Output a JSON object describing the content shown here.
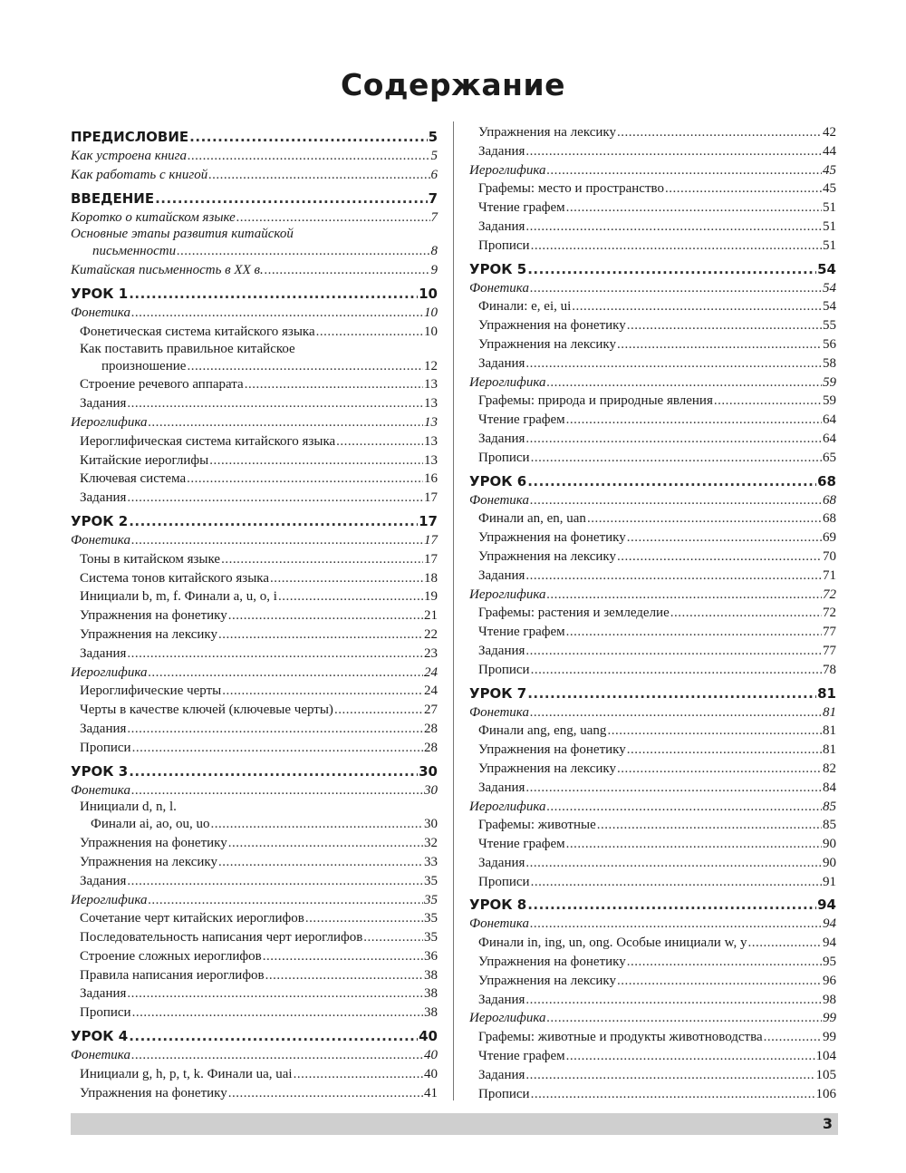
{
  "title": "Содержание",
  "page_number": "3",
  "left": [
    {
      "k": "h",
      "t": "ПРЕДИСЛОВИЕ",
      "p": "5"
    },
    {
      "k": "s",
      "t": "Как устроена книга",
      "p": "5"
    },
    {
      "k": "s",
      "t": "Как работать с книгой",
      "p": "6"
    },
    {
      "k": "h",
      "t": "ВВЕДЕНИЕ",
      "p": "7"
    },
    {
      "k": "s",
      "t": "Коротко о китайском языке",
      "p": "7"
    },
    {
      "k": "s",
      "pre": "Основные этапы развития китайской",
      "t": "письменности",
      "p": "8"
    },
    {
      "k": "s",
      "t": "Китайская письменность в XX в.",
      "p": "9"
    },
    {
      "k": "h",
      "t": "УРОК 1",
      "p": "10"
    },
    {
      "k": "s",
      "t": "Фонетика",
      "p": "10"
    },
    {
      "k": "i",
      "t": "Фонетическая система китайского языка",
      "p": "10"
    },
    {
      "k": "i",
      "pre": "Как поставить правильное китайское",
      "t": "произношение",
      "p": "12"
    },
    {
      "k": "i",
      "t": "Строение речевого аппарата",
      "p": "13"
    },
    {
      "k": "i",
      "t": "Задания",
      "p": "13"
    },
    {
      "k": "s",
      "t": "Иероглифика",
      "p": "13"
    },
    {
      "k": "i",
      "t": "Иероглифическая система китайского языка",
      "p": "13"
    },
    {
      "k": "i",
      "t": "Китайские иероглифы",
      "p": "13"
    },
    {
      "k": "i",
      "t": "Ключевая система",
      "p": "16"
    },
    {
      "k": "i",
      "t": "Задания",
      "p": "17"
    },
    {
      "k": "h",
      "t": "УРОК 2",
      "p": "17"
    },
    {
      "k": "s",
      "t": "Фонетика",
      "p": "17"
    },
    {
      "k": "i",
      "t": "Тоны в китайском языке",
      "p": "17"
    },
    {
      "k": "i",
      "t": "Система тонов китайского языка",
      "p": "18"
    },
    {
      "k": "i",
      "t": "Инициали b, m, f. Финали a, u, o, i",
      "p": "19"
    },
    {
      "k": "i",
      "t": "Упражнения на фонетику",
      "p": "21"
    },
    {
      "k": "i",
      "t": "Упражнения на лексику",
      "p": "22"
    },
    {
      "k": "i",
      "t": "Задания",
      "p": "23"
    },
    {
      "k": "s",
      "t": "Иероглифика",
      "p": "24"
    },
    {
      "k": "i",
      "t": "Иероглифические черты",
      "p": "24"
    },
    {
      "k": "i",
      "t": "Черты в качестве ключей (ключевые черты)",
      "p": "27"
    },
    {
      "k": "i",
      "t": "Задания",
      "p": "28"
    },
    {
      "k": "i",
      "t": "Прописи",
      "p": "28"
    },
    {
      "k": "h",
      "t": "УРОК 3",
      "p": "30"
    },
    {
      "k": "s",
      "t": "Фонетика",
      "p": "30"
    },
    {
      "k": "i",
      "pre": "Инициали d, n, l.",
      "t": "Финали ai, ao, ou, uo",
      "p": "30"
    },
    {
      "k": "i",
      "t": "Упражнения на фонетику",
      "p": "32"
    },
    {
      "k": "i",
      "t": "Упражнения на лексику",
      "p": "33"
    },
    {
      "k": "i",
      "t": "Задания",
      "p": "35"
    },
    {
      "k": "s",
      "t": "Иероглифика",
      "p": "35"
    },
    {
      "k": "i",
      "t": "Сочетание черт китайских иероглифов",
      "p": "35"
    },
    {
      "k": "i",
      "t": "Последовательность написания черт иероглифов",
      "p": "35"
    },
    {
      "k": "i",
      "t": "Строение сложных иероглифов",
      "p": "36"
    },
    {
      "k": "i",
      "t": "Правила написания иероглифов",
      "p": "38"
    },
    {
      "k": "i",
      "t": "Задания",
      "p": "38"
    },
    {
      "k": "i",
      "t": "Прописи",
      "p": "38"
    },
    {
      "k": "h",
      "t": "УРОК 4",
      "p": "40"
    },
    {
      "k": "s",
      "t": "Фонетика",
      "p": "40"
    },
    {
      "k": "i",
      "t": "Инициали g, h, p, t, k. Финали ua, uai",
      "p": "40"
    },
    {
      "k": "i",
      "t": "Упражнения на фонетику",
      "p": "41"
    }
  ],
  "right": [
    {
      "k": "i",
      "t": "Упражнения на лексику",
      "p": "42"
    },
    {
      "k": "i",
      "t": "Задания",
      "p": "44"
    },
    {
      "k": "s",
      "t": "Иероглифика",
      "p": "45"
    },
    {
      "k": "i",
      "t": "Графемы: место и пространство",
      "p": "45"
    },
    {
      "k": "i",
      "t": "Чтение графем",
      "p": "51"
    },
    {
      "k": "i",
      "t": "Задания",
      "p": "51"
    },
    {
      "k": "i",
      "t": "Прописи",
      "p": "51"
    },
    {
      "k": "h",
      "t": "УРОК 5",
      "p": "54"
    },
    {
      "k": "s",
      "t": "Фонетика",
      "p": "54"
    },
    {
      "k": "i",
      "t": "Финали: e, ei, ui",
      "p": "54"
    },
    {
      "k": "i",
      "t": "Упражнения на фонетику",
      "p": "55"
    },
    {
      "k": "i",
      "t": "Упражнения на лексику",
      "p": "56"
    },
    {
      "k": "i",
      "t": "Задания",
      "p": "58"
    },
    {
      "k": "s",
      "t": "Иероглифика",
      "p": "59"
    },
    {
      "k": "i",
      "t": "Графемы: природа и природные явления",
      "p": "59"
    },
    {
      "k": "i",
      "t": "Чтение графем",
      "p": "64"
    },
    {
      "k": "i",
      "t": "Задания",
      "p": "64"
    },
    {
      "k": "i",
      "t": "Прописи",
      "p": "65"
    },
    {
      "k": "h",
      "t": "УРОК 6",
      "p": "68"
    },
    {
      "k": "s",
      "t": "Фонетика",
      "p": "68"
    },
    {
      "k": "i",
      "t": "Финали an, en, uan",
      "p": "68"
    },
    {
      "k": "i",
      "t": "Упражнения на фонетику",
      "p": "69"
    },
    {
      "k": "i",
      "t": "Упражнения на лексику",
      "p": "70"
    },
    {
      "k": "i",
      "t": "Задания",
      "p": "71"
    },
    {
      "k": "s",
      "t": "Иероглифика",
      "p": "72"
    },
    {
      "k": "i",
      "t": "Графемы: растения и земледелие",
      "p": "72"
    },
    {
      "k": "i",
      "t": "Чтение графем",
      "p": "77"
    },
    {
      "k": "i",
      "t": "Задания",
      "p": "77"
    },
    {
      "k": "i",
      "t": "Прописи",
      "p": "78"
    },
    {
      "k": "h",
      "t": "УРОК 7",
      "p": "81"
    },
    {
      "k": "s",
      "t": "Фонетика",
      "p": "81"
    },
    {
      "k": "i",
      "t": "Финали ang, eng, uang",
      "p": "81"
    },
    {
      "k": "i",
      "t": "Упражнения на фонетику",
      "p": "81"
    },
    {
      "k": "i",
      "t": "Упражнения на лексику",
      "p": "82"
    },
    {
      "k": "i",
      "t": "Задания",
      "p": "84"
    },
    {
      "k": "s",
      "t": "Иероглифика",
      "p": "85"
    },
    {
      "k": "i",
      "t": "Графемы: животные",
      "p": "85"
    },
    {
      "k": "i",
      "t": "Чтение графем",
      "p": "90"
    },
    {
      "k": "i",
      "t": "Задания",
      "p": "90"
    },
    {
      "k": "i",
      "t": "Прописи",
      "p": "91"
    },
    {
      "k": "h",
      "t": "УРОК 8",
      "p": "94"
    },
    {
      "k": "s",
      "t": "Фонетика",
      "p": "94"
    },
    {
      "k": "i",
      "t": "Финали in, ing, un, ong. Особые инициали w, y",
      "p": "94"
    },
    {
      "k": "i",
      "t": "Упражнения на фонетику",
      "p": "95"
    },
    {
      "k": "i",
      "t": "Упражнения на лексику",
      "p": "96"
    },
    {
      "k": "i",
      "t": "Задания",
      "p": "98"
    },
    {
      "k": "s",
      "t": "Иероглифика",
      "p": "99"
    },
    {
      "k": "i",
      "t": "Графемы: животные и продукты животноводства",
      "p": "99"
    },
    {
      "k": "i",
      "t": "Чтение графем",
      "p": "104"
    },
    {
      "k": "i",
      "t": "Задания",
      "p": "105"
    },
    {
      "k": "i",
      "t": "Прописи",
      "p": "106"
    }
  ]
}
